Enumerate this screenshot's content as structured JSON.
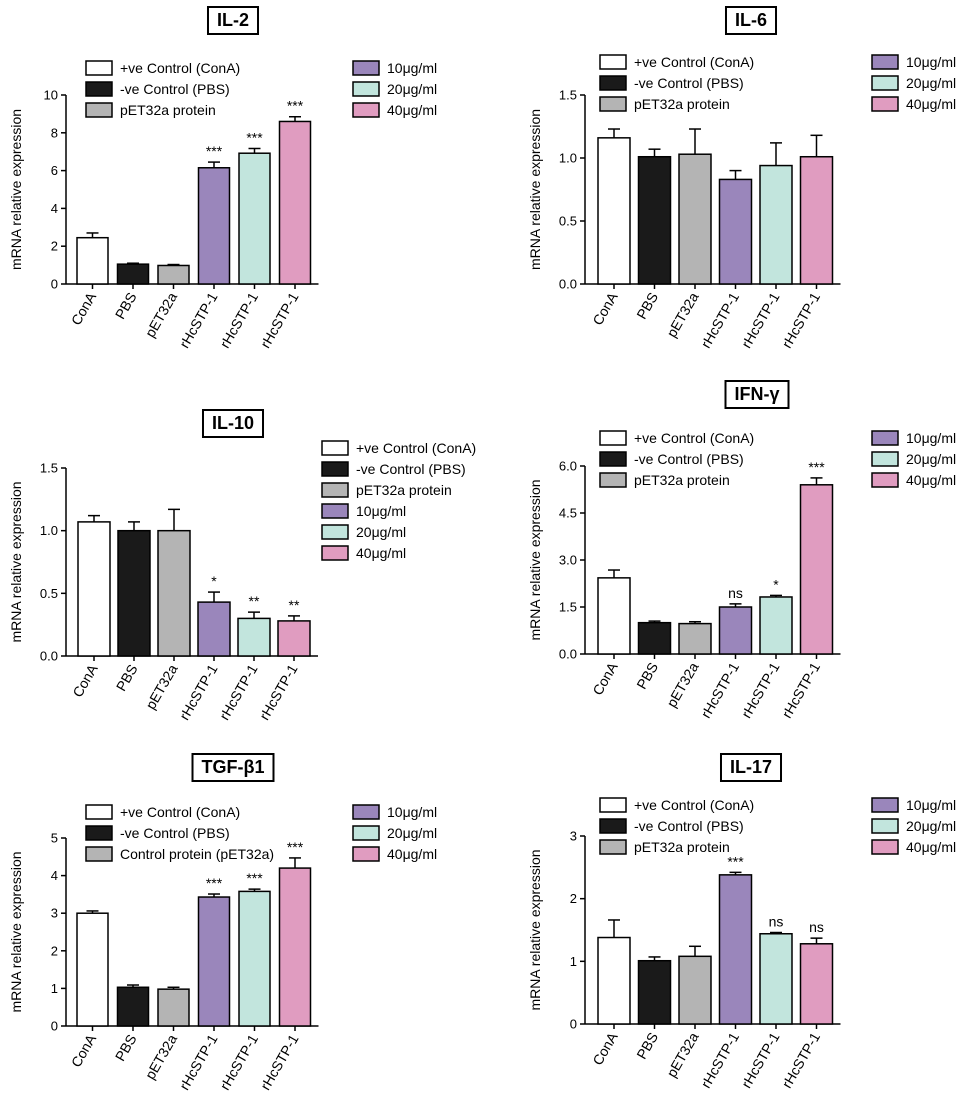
{
  "colors": {
    "ConA": "#ffffff",
    "PBS": "#1a1a1a",
    "pET32a": "#b4b4b4",
    "c10": "#9a86bb",
    "c20": "#c2e5dd",
    "c40": "#e09cc0"
  },
  "chart_data": [
    {
      "type": "bar",
      "title": "IL-2",
      "ylabel": "mRNA relative expression",
      "ylim": [
        0,
        10
      ],
      "yticks": [
        "0",
        "2",
        "4",
        "6",
        "8",
        "10"
      ],
      "categories": [
        "ConA",
        "PBS",
        "pET32a",
        "rHcSTP-1",
        "rHcSTP-1",
        "rHcSTP-1"
      ],
      "values": [
        2.45,
        1.05,
        0.98,
        6.15,
        6.92,
        8.6
      ],
      "errors": [
        0.25,
        0.05,
        0.05,
        0.3,
        0.25,
        0.25
      ],
      "significance": [
        "",
        "",
        "",
        "***",
        "***",
        "***"
      ],
      "legend_left": [
        "+ve Control (ConA)",
        "-ve Control (PBS)",
        "pET32a protein"
      ],
      "legend_right": [
        "10μg/ml",
        "20μg/ml",
        "40μg/ml"
      ]
    },
    {
      "type": "bar",
      "title": "IL-6",
      "ylabel": "mRNA relative expression",
      "ylim": [
        0,
        1.5
      ],
      "yticks": [
        "0.0",
        "0.5",
        "1.0",
        "1.5"
      ],
      "categories": [
        "ConA",
        "PBS",
        "pET32a",
        "rHcSTP-1",
        "rHcSTP-1",
        "rHcSTP-1"
      ],
      "values": [
        1.16,
        1.01,
        1.03,
        0.83,
        0.94,
        1.01
      ],
      "errors": [
        0.07,
        0.06,
        0.2,
        0.07,
        0.18,
        0.17
      ],
      "significance": [
        "",
        "",
        "",
        "",
        "",
        ""
      ],
      "legend_left": [
        "+ve Control (ConA)",
        "-ve Control (PBS)",
        "pET32a protein"
      ],
      "legend_right": [
        "10μg/ml",
        "20μg/ml",
        "40μg/ml"
      ]
    },
    {
      "type": "bar",
      "title": "IL-10",
      "ylabel": "mRNA relative expression",
      "ylim": [
        0,
        1.5
      ],
      "yticks": [
        "0.0",
        "0.5",
        "1.0",
        "1.5"
      ],
      "categories": [
        "ConA",
        "PBS",
        "pET32a",
        "rHcSTP-1",
        "rHcSTP-1",
        "rHcSTP-1"
      ],
      "values": [
        1.07,
        1.0,
        1.0,
        0.43,
        0.3,
        0.28
      ],
      "errors": [
        0.05,
        0.07,
        0.17,
        0.08,
        0.05,
        0.04
      ],
      "significance": [
        "",
        "",
        "",
        "*",
        "**",
        "**"
      ],
      "legend_left": [
        "+ve Control (ConA)",
        "-ve Control (PBS)",
        "pET32a protein",
        "10μg/ml",
        "20μg/ml",
        "40μg/ml"
      ],
      "legend_right": []
    },
    {
      "type": "bar",
      "title": "IFN-γ",
      "ylabel": "mRNA relative expression",
      "ylim": [
        0,
        6.0
      ],
      "yticks": [
        "0.0",
        "1.5",
        "3.0",
        "4.5",
        "6.0"
      ],
      "categories": [
        "ConA",
        "PBS",
        "pET32a",
        "rHcSTP-1",
        "rHcSTP-1",
        "rHcSTP-1"
      ],
      "values": [
        2.43,
        1.0,
        0.97,
        1.5,
        1.82,
        5.4
      ],
      "errors": [
        0.25,
        0.05,
        0.06,
        0.1,
        0.05,
        0.22
      ],
      "significance": [
        "",
        "",
        "",
        "ns",
        "*",
        "***"
      ],
      "legend_left": [
        "+ve Control (ConA)",
        "-ve Control (PBS)",
        "pET32a protein"
      ],
      "legend_right": [
        "10μg/ml",
        "20μg/ml",
        "40μg/ml"
      ]
    },
    {
      "type": "bar",
      "title": "TGF-β1",
      "ylabel": "mRNA relative expression",
      "ylim": [
        0,
        5
      ],
      "yticks": [
        "0",
        "1",
        "2",
        "3",
        "4",
        "5"
      ],
      "categories": [
        "ConA",
        "PBS",
        "pET32a",
        "rHcSTP-1",
        "rHcSTP-1",
        "rHcSTP-1"
      ],
      "values": [
        3.0,
        1.03,
        0.98,
        3.43,
        3.58,
        4.2
      ],
      "errors": [
        0.06,
        0.06,
        0.05,
        0.08,
        0.06,
        0.27
      ],
      "significance": [
        "",
        "",
        "",
        "***",
        "***",
        "***"
      ],
      "legend_left": [
        "+ve Control (ConA)",
        "-ve Control (PBS)",
        "Control protein (pET32a)"
      ],
      "legend_right": [
        "10μg/ml",
        "20μg/ml",
        "40μg/ml"
      ]
    },
    {
      "type": "bar",
      "title": "IL-17",
      "ylabel": "mRNA relative expression",
      "ylim": [
        0,
        3
      ],
      "yticks": [
        "0",
        "1",
        "2",
        "3"
      ],
      "categories": [
        "ConA",
        "PBS",
        "pET32a",
        "rHcSTP-1",
        "rHcSTP-1",
        "rHcSTP-1"
      ],
      "values": [
        1.38,
        1.01,
        1.08,
        2.38,
        1.44,
        1.28
      ],
      "errors": [
        0.28,
        0.06,
        0.16,
        0.04,
        0.02,
        0.09
      ],
      "significance": [
        "",
        "",
        "",
        "***",
        "ns",
        "ns"
      ],
      "legend_left": [
        "+ve Control (ConA)",
        "-ve Control (PBS)",
        "pET32a protein"
      ],
      "legend_right": [
        "10μg/ml",
        "20μg/ml",
        "40μg/ml"
      ]
    }
  ]
}
